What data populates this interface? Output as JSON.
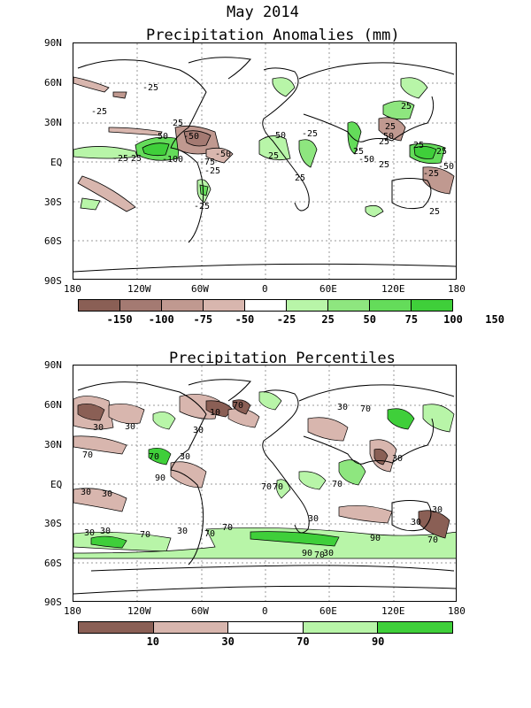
{
  "header": {
    "date": "May 2014"
  },
  "panel1": {
    "title": "Precipitation Anomalies (mm)",
    "lat_labels": [
      "90N",
      "60N",
      "30N",
      "EQ",
      "30S",
      "60S",
      "90S"
    ],
    "lon_labels": [
      "180",
      "120W",
      "60W",
      "0",
      "60E",
      "120E",
      "180"
    ],
    "colorbar": {
      "colors": [
        "#8a5f55",
        "#a47a72",
        "#c09990",
        "#d8b6ae",
        "#ffffff",
        "#b8f5a8",
        "#8ee67f",
        "#64dc5a",
        "#3fcf3a"
      ],
      "labels": [
        "-150",
        "-100",
        "-75",
        "-50",
        "-25",
        "25",
        "50",
        "75",
        "100",
        "150"
      ]
    },
    "contour_labels": [
      "-25",
      "-25",
      "25",
      "50",
      "25",
      "-50",
      "-100",
      "-75",
      "-25",
      "-50",
      "-25",
      "50",
      "25",
      "-25",
      "25",
      "25",
      "-50",
      "25",
      "25",
      "50",
      "25",
      "25",
      "-25",
      "-25",
      "25",
      "-50",
      "25",
      "-25"
    ]
  },
  "panel2": {
    "title": "Precipitation Percentiles",
    "lat_labels": [
      "90N",
      "60N",
      "30N",
      "EQ",
      "30S",
      "60S",
      "90S"
    ],
    "lon_labels": [
      "180",
      "120W",
      "60W",
      "0",
      "60E",
      "120E",
      "180"
    ],
    "colorbar": {
      "colors": [
        "#8a5f55",
        "#d8b6ae",
        "#ffffff",
        "#b8f5a8",
        "#3fcf3a"
      ],
      "labels": [
        "10",
        "30",
        "70",
        "90"
      ]
    },
    "contour_labels": [
      "30",
      "10",
      "30",
      "70",
      "30",
      "70",
      "30",
      "90",
      "30",
      "70",
      "30",
      "30",
      "70",
      "70",
      "30",
      "30",
      "70",
      "70",
      "30",
      "30",
      "90",
      "70",
      "30",
      "30",
      "70",
      "70",
      "30",
      "70",
      "90",
      "30",
      "70"
    ]
  }
}
